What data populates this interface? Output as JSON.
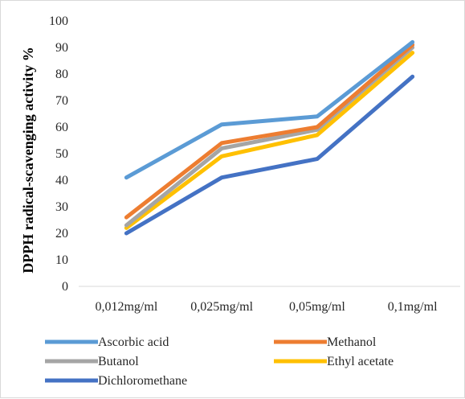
{
  "chart_data": {
    "type": "line",
    "title": "",
    "xlabel": "",
    "ylabel": "DPPH radical-scavenging activity %",
    "categories": [
      "0,012mg/ml",
      "0,025mg/ml",
      "0,05mg/ml",
      "0,1mg/ml"
    ],
    "ylim": [
      0,
      100
    ],
    "yticks": [
      0,
      10,
      20,
      30,
      40,
      50,
      60,
      70,
      80,
      90,
      100
    ],
    "grid": false,
    "legend_position": "bottom",
    "series": [
      {
        "name": "Ascorbic acid",
        "color": "#5b9bd5",
        "values": [
          41,
          61,
          64,
          92
        ]
      },
      {
        "name": "Methanol",
        "color": "#ed7d31",
        "values": [
          26,
          54,
          60,
          91
        ]
      },
      {
        "name": "Butanol",
        "color": "#a5a5a5",
        "values": [
          23,
          52,
          59,
          90
        ]
      },
      {
        "name": "Ethyl acetate",
        "color": "#ffc000",
        "values": [
          22,
          49,
          57,
          88
        ]
      },
      {
        "name": "Dichloromethane",
        "color": "#4472c4",
        "values": [
          20,
          41,
          48,
          79
        ]
      }
    ]
  }
}
